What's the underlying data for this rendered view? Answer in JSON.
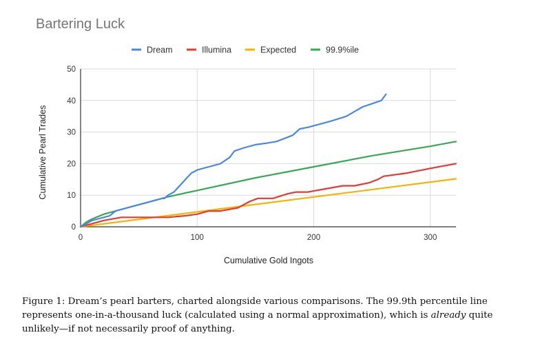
{
  "chart_data": {
    "type": "line",
    "title": "Bartering Luck",
    "xlabel": "Cumulative Gold Ingots",
    "ylabel": "Cumulative Pearl Trades",
    "xlim": [
      0,
      322
    ],
    "ylim": [
      0,
      50
    ],
    "x_ticks": [
      "0",
      "100",
      "200",
      "300"
    ],
    "y_ticks": [
      "0",
      "10",
      "20",
      "30",
      "40",
      "50"
    ],
    "grid": true,
    "legend_position": "top",
    "series": [
      {
        "name": "Dream",
        "color": "#4a86e8",
        "x": [
          0,
          5,
          10,
          15,
          20,
          25,
          30,
          40,
          50,
          60,
          70,
          72,
          75,
          80,
          85,
          90,
          95,
          100,
          110,
          120,
          128,
          132,
          140,
          150,
          160,
          168,
          175,
          182,
          188,
          195,
          205,
          215,
          228,
          235,
          242,
          250,
          258,
          262
        ],
        "y": [
          0,
          1,
          2,
          2.5,
          3,
          3.5,
          5,
          6,
          7,
          8,
          9,
          9,
          10,
          11,
          13,
          15,
          17,
          18,
          19,
          20,
          22,
          24,
          25,
          26,
          26.5,
          27,
          28,
          29,
          31,
          31.5,
          32.5,
          33.5,
          35,
          36.5,
          38,
          39,
          40,
          42
        ]
      },
      {
        "name": "Illumina",
        "color": "#e53935",
        "x": [
          0,
          10,
          20,
          35,
          60,
          75,
          90,
          100,
          110,
          120,
          135,
          140,
          145,
          152,
          165,
          178,
          185,
          195,
          210,
          225,
          235,
          248,
          255,
          260,
          280,
          300,
          322
        ],
        "y": [
          0,
          1,
          2,
          3,
          3,
          3,
          3.5,
          4,
          5,
          5,
          6,
          7,
          8,
          9,
          9,
          10.5,
          11,
          11,
          12,
          13,
          13,
          14,
          15,
          16,
          17,
          18.5,
          20
        ]
      },
      {
        "name": "Expected",
        "color": "#f4b400",
        "x": [
          0,
          322
        ],
        "y": [
          0,
          15.2
        ]
      },
      {
        "name": "99.9%ile",
        "color": "#34a853",
        "x": [
          0,
          5,
          10,
          20,
          30,
          50,
          75,
          100,
          150,
          200,
          250,
          300,
          322
        ],
        "y": [
          0,
          1.5,
          2.5,
          4,
          5,
          7,
          9.5,
          11.5,
          15.5,
          19,
          22.5,
          25.5,
          27
        ]
      }
    ]
  },
  "caption": {
    "before": "Figure 1: Dream’s pearl barters, charted alongside various comparisons. The 99.9th percentile line represents one-in-a-thousand luck (calculated using a normal approximation), which is ",
    "emphasis": "already",
    "after": " quite unlikely—if not necessarily proof of anything."
  }
}
